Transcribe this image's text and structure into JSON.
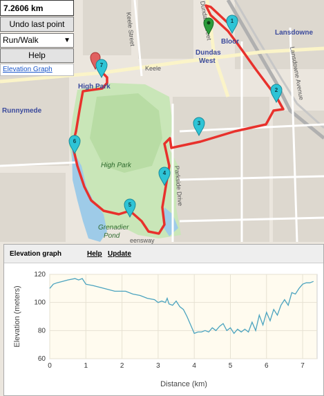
{
  "controls": {
    "distance": "7.2606 km",
    "undo_label": "Undo last point",
    "mode_value": "Run/Walk",
    "help_label": "Help",
    "elevation_link": "Elevation Graph"
  },
  "map": {
    "labels": {
      "high_park_area": "High Park",
      "high_park": "High Park",
      "runnymede": "Runnymede",
      "dundas_west_1": "Dundas",
      "dundas_west_2": "West",
      "bloor": "Bloor",
      "lansdowne": "Lansdowne",
      "keele_street": "Keele Street",
      "keele": "Keele",
      "lansdowne_avenue": "Lansdowne Avenue",
      "parkside_drive": "Parkside Drive",
      "grenadier_1": "Grenadier",
      "grenadier_2": "Pond",
      "dundas_street": "Dundas Street",
      "queensway": "eensway"
    },
    "markers": [
      "1",
      "2",
      "3",
      "4",
      "5",
      "6",
      "7"
    ],
    "colors": {
      "route": "#e8312c",
      "marker": "#2ec4d6",
      "start_marker": "#2a9b3a",
      "end_marker": "#e06060"
    }
  },
  "elevation": {
    "title": "Elevation graph",
    "help_label": "Help",
    "update_label": "Update"
  },
  "chart_data": {
    "type": "line",
    "title": "",
    "xlabel": "Distance (km)",
    "ylabel": "Elevation (meters)",
    "xlim": [
      0,
      7.4
    ],
    "ylim": [
      60,
      120
    ],
    "xticks": [
      0,
      1,
      2,
      3,
      4,
      5,
      6,
      7
    ],
    "yticks": [
      60,
      80,
      100,
      120
    ],
    "grid": true,
    "line_color": "#4aa3bf",
    "x": [
      0,
      0.1,
      0.2,
      0.35,
      0.5,
      0.7,
      0.8,
      0.9,
      1.0,
      1.2,
      1.5,
      1.8,
      2.1,
      2.3,
      2.5,
      2.7,
      2.9,
      3.0,
      3.1,
      3.2,
      3.25,
      3.3,
      3.4,
      3.5,
      3.6,
      3.7,
      3.8,
      3.9,
      3.95,
      4.0,
      4.1,
      4.2,
      4.3,
      4.4,
      4.5,
      4.6,
      4.7,
      4.8,
      4.9,
      5.0,
      5.1,
      5.2,
      5.3,
      5.4,
      5.5,
      5.6,
      5.7,
      5.8,
      5.9,
      6.0,
      6.1,
      6.2,
      6.3,
      6.4,
      6.5,
      6.6,
      6.7,
      6.8,
      6.9,
      7.0,
      7.1,
      7.2,
      7.3
    ],
    "y": [
      110,
      113,
      114,
      115,
      116,
      117,
      116,
      117,
      113,
      112,
      110,
      108,
      108,
      106,
      105,
      103,
      102,
      100,
      101,
      100,
      103,
      99,
      98,
      101,
      97,
      95,
      90,
      84,
      81,
      78,
      79,
      79,
      80,
      79,
      82,
      80,
      83,
      85,
      80,
      82,
      78,
      81,
      79,
      81,
      79,
      86,
      80,
      91,
      84,
      93,
      87,
      95,
      91,
      98,
      102,
      98,
      107,
      106,
      110,
      113,
      114,
      114,
      115
    ]
  }
}
